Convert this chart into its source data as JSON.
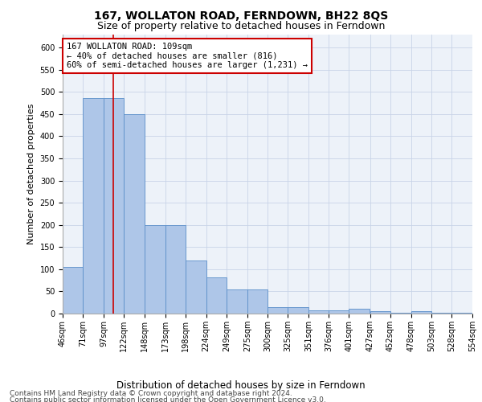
{
  "title": "167, WOLLATON ROAD, FERNDOWN, BH22 8QS",
  "subtitle": "Size of property relative to detached houses in Ferndown",
  "xlabel": "Distribution of detached houses by size in Ferndown",
  "ylabel": "Number of detached properties",
  "bar_edges": [
    46,
    71,
    97,
    122,
    148,
    173,
    198,
    224,
    249,
    275,
    300,
    325,
    351,
    376,
    401,
    427,
    452,
    478,
    503,
    528,
    554
  ],
  "bar_heights": [
    105,
    485,
    485,
    450,
    200,
    200,
    120,
    82,
    55,
    55,
    15,
    15,
    8,
    8,
    10,
    5,
    2,
    5,
    2,
    2
  ],
  "bar_color": "#aec6e8",
  "bar_edge_color": "#5b8fc9",
  "property_size": 109,
  "red_line_color": "#cc0000",
  "annotation_line1": "167 WOLLATON ROAD: 109sqm",
  "annotation_line2": "← 40% of detached houses are smaller (816)",
  "annotation_line3": "60% of semi-detached houses are larger (1,231) →",
  "annotation_box_facecolor": "#ffffff",
  "annotation_box_edgecolor": "#cc0000",
  "ylim_max": 630,
  "yticks": [
    0,
    50,
    100,
    150,
    200,
    250,
    300,
    350,
    400,
    450,
    500,
    550,
    600
  ],
  "grid_color": "#c8d4e8",
  "bg_color": "#edf2f9",
  "footer_line1": "Contains HM Land Registry data © Crown copyright and database right 2024.",
  "footer_line2": "Contains public sector information licensed under the Open Government Licence v3.0.",
  "title_fontsize": 10,
  "subtitle_fontsize": 9,
  "ylabel_fontsize": 8,
  "xlabel_fontsize": 8.5,
  "tick_fontsize": 7,
  "annot_fontsize": 7.5,
  "footer_fontsize": 6.5
}
